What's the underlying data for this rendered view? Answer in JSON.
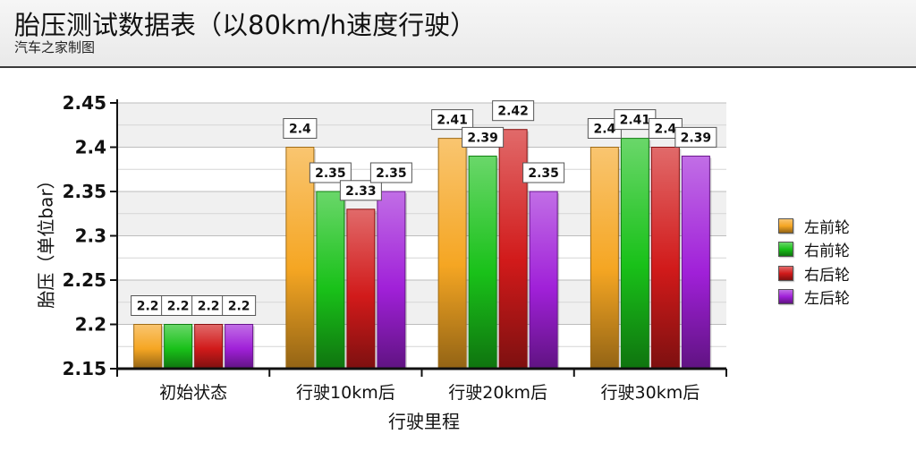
{
  "header": {
    "title": "胎压测试数据表（以80km/h速度行驶）",
    "subtitle": "汽车之家制图"
  },
  "chart_data": {
    "type": "bar",
    "title": "胎压测试数据表（以80km/h速度行驶）",
    "subtitle": "汽车之家制图",
    "xlabel": "行驶里程",
    "ylabel": "胎压（单位bar）",
    "ylim": [
      2.15,
      2.45
    ],
    "yticks": [
      "2.15",
      "2.2",
      "2.25",
      "2.3",
      "2.35",
      "2.4",
      "2.45"
    ],
    "categories": [
      "初始状态",
      "行驶10km后",
      "行驶20km后",
      "行驶30km后"
    ],
    "series": [
      {
        "name": "左前轮",
        "color": "#f5a623",
        "values": [
          2.2,
          2.4,
          2.41,
          2.4
        ]
      },
      {
        "name": "右前轮",
        "color": "#19c119",
        "values": [
          2.2,
          2.35,
          2.39,
          2.41
        ]
      },
      {
        "name": "右后轮",
        "color": "#d11a1a",
        "values": [
          2.2,
          2.33,
          2.42,
          2.4
        ]
      },
      {
        "name": "左后轮",
        "color": "#a020d8",
        "values": [
          2.2,
          2.35,
          2.35,
          2.39
        ]
      }
    ],
    "grid": true,
    "legend_position": "right"
  }
}
